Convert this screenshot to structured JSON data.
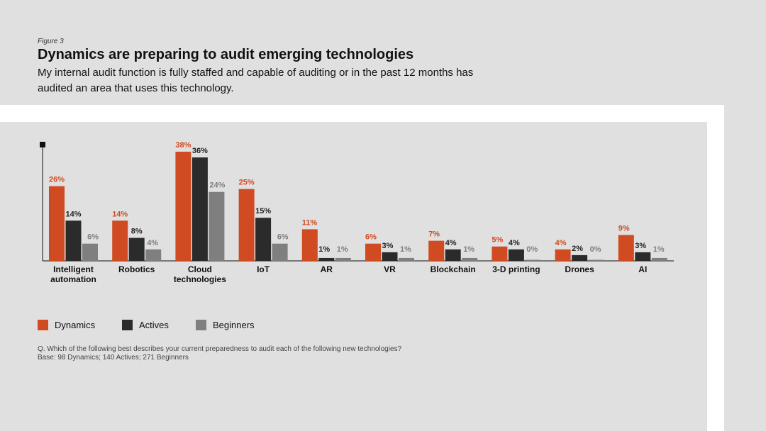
{
  "header": {
    "figure_label": "Figure 3",
    "title": "Dynamics are preparing to audit emerging technologies",
    "subtitle": "My internal audit function is fully staffed and capable of auditing or in the past 12 months has audited an area that uses this technology."
  },
  "chart_data": {
    "type": "bar",
    "categories": [
      [
        "Intelligent",
        "automation"
      ],
      [
        "Robotics"
      ],
      [
        "Cloud",
        "technologies"
      ],
      [
        "IoT"
      ],
      [
        "AR"
      ],
      [
        "VR"
      ],
      [
        "Blockchain"
      ],
      [
        "3-D printing"
      ],
      [
        "Drones"
      ],
      [
        "AI"
      ]
    ],
    "series": [
      {
        "name": "Dynamics",
        "color": "#d04a22",
        "values": [
          26,
          14,
          38,
          25,
          11,
          6,
          7,
          5,
          4,
          9
        ],
        "labels": [
          "26%",
          "14%",
          "38%",
          "25%",
          "11%",
          "6%",
          "7%",
          "5%",
          "4%",
          "9%"
        ]
      },
      {
        "name": "Actives",
        "color": "#2b2b2b",
        "values": [
          14,
          8,
          36,
          15,
          1,
          3,
          4,
          4,
          2,
          3
        ],
        "labels": [
          "14%",
          "8%",
          "36%",
          "15%",
          "1%",
          "3%",
          "4%",
          "4%",
          "2%",
          "3%"
        ]
      },
      {
        "name": "Beginners",
        "color": "#7f7f7f",
        "values": [
          6,
          4,
          24,
          6,
          1,
          1,
          1,
          0,
          0,
          1
        ],
        "labels": [
          "6%",
          "4%",
          "24%",
          "6%",
          "1%",
          "1%",
          "1%",
          "0%",
          "0%",
          "1%"
        ]
      }
    ],
    "ylim": [
      0,
      40
    ],
    "xlabel": "",
    "ylabel": ""
  },
  "legend": {
    "dynamics": "Dynamics",
    "actives": "Actives",
    "beginners": "Beginners"
  },
  "note": {
    "question": "Q. Which of the following best describes your current preparedness to audit each of the following new technologies?",
    "base": "Base: 98 Dynamics; 140 Actives; 271 Beginners"
  }
}
